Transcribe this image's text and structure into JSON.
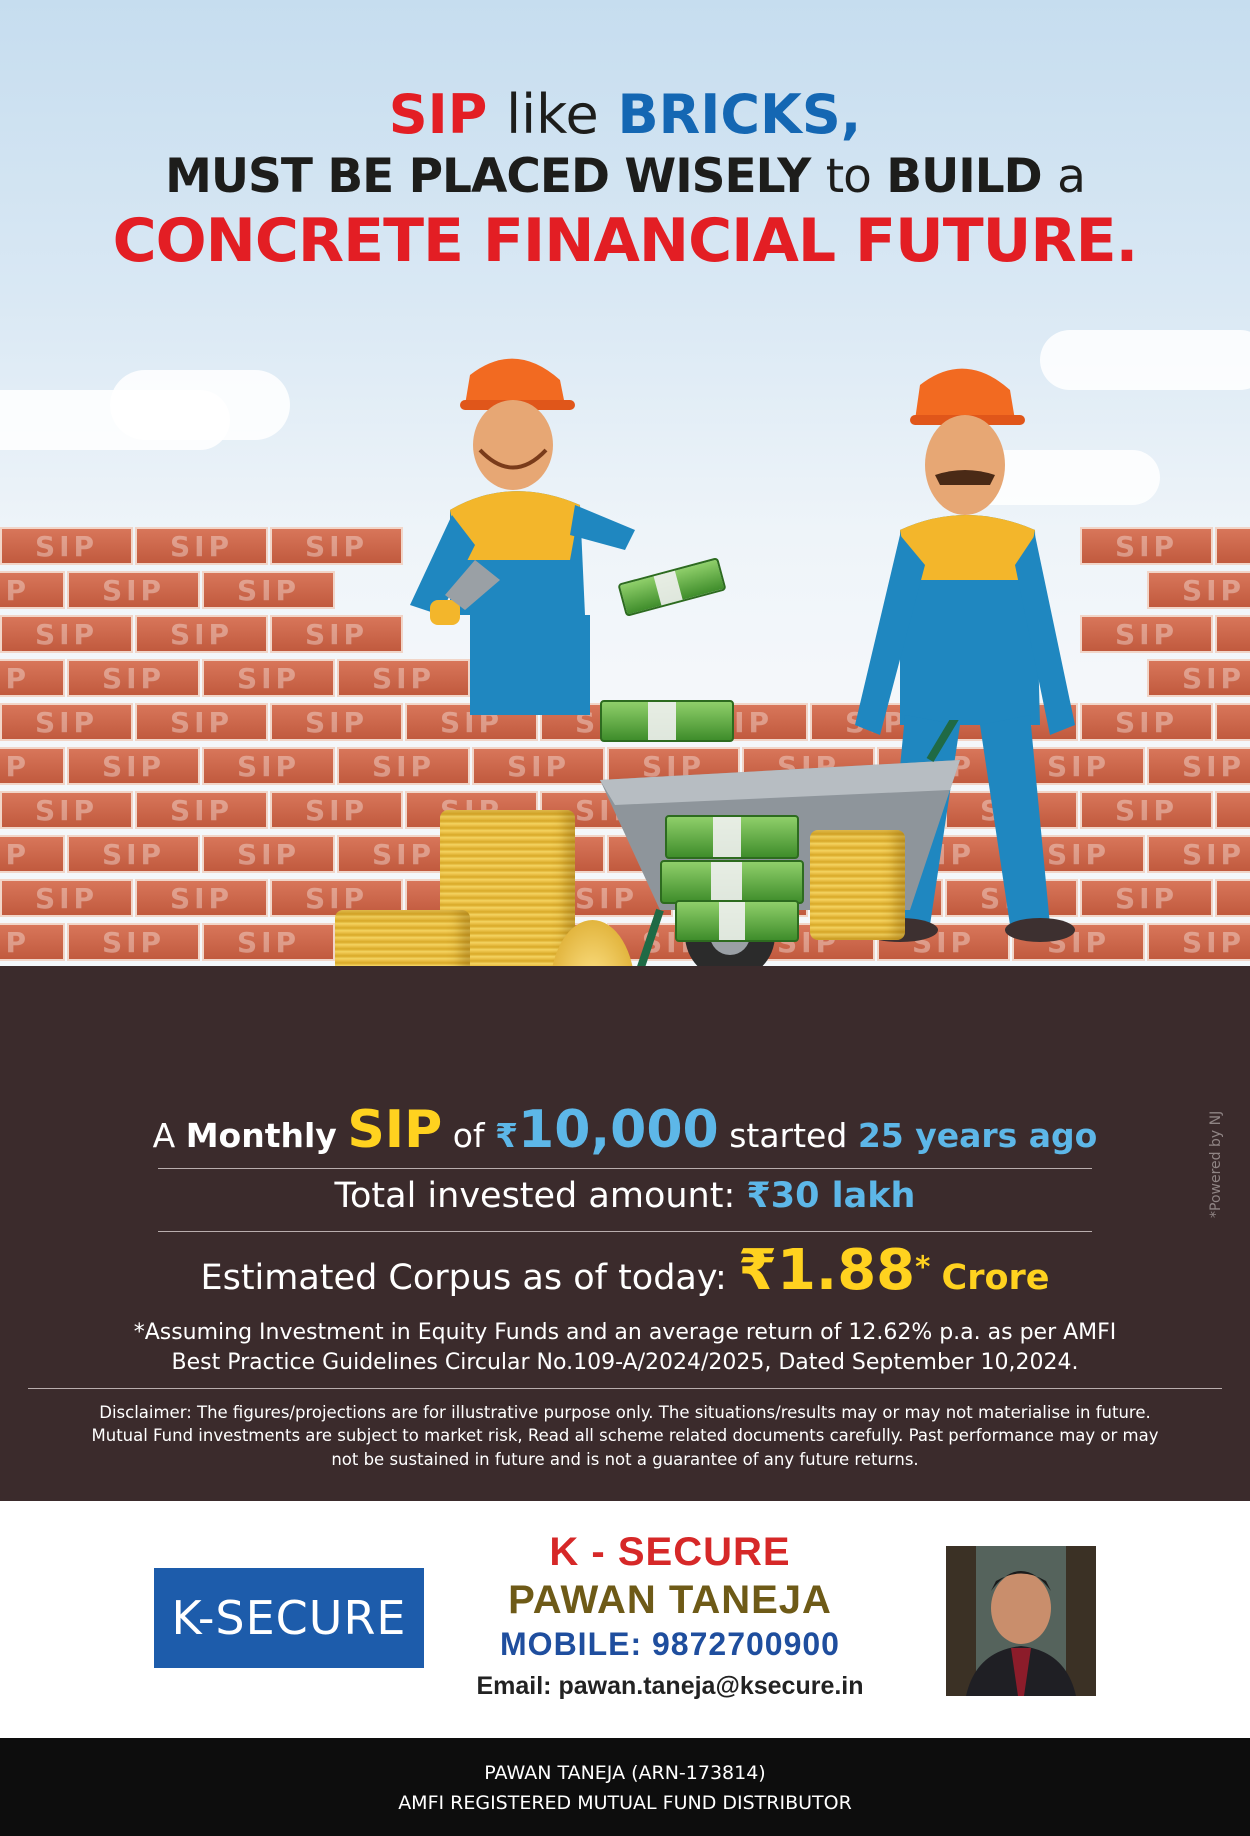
{
  "headline": {
    "line1": {
      "sip": "SIP",
      "like": "like",
      "bricks": "BRICKS,"
    },
    "line2": {
      "must": "MUST BE PLACED WISELY",
      "to": "to",
      "build": "BUILD",
      "a": "a"
    },
    "line3": "CONCRETE FINANCIAL FUTURE."
  },
  "wall": {
    "brick_label": "SIP"
  },
  "stats": {
    "line1": {
      "a": "A",
      "monthly": "Monthly",
      "sip": "SIP",
      "of": "of",
      "rupee": "₹",
      "amount": "10,000",
      "started": "started",
      "years": "25 years ago"
    },
    "line2": {
      "label": "Total invested amount:",
      "value": "₹30 lakh"
    },
    "line3": {
      "label": "Estimated Corpus as of today:",
      "rupee": "₹",
      "value": "1.88",
      "star": "*",
      "unit": "Crore"
    },
    "footnote_1": "*Assuming Investment in Equity Funds and an average return of 12.62% p.a. as per AMFI",
    "footnote_2": "Best Practice  Guidelines Circular No.109-A/2024/2025, Dated September 10,2024.",
    "disclaimer_1": "Disclaimer: The figures/projections are for illustrative purpose only. The situations/results may or may not materialise in future.",
    "disclaimer_2": "Mutual Fund investments are subject to market risk, Read all scheme related documents carefully. Past performance may or may",
    "disclaimer_3": "not be sustained in future and is not a guarantee of any future returns.",
    "powered": "*Powered by NJ"
  },
  "contact": {
    "logo": "K-SECURE",
    "company": "K - SECURE",
    "name": "PAWAN TANEJA",
    "mobile": "MOBILE: 9872700900",
    "email": "Email: pawan.taneja@ksecure.in"
  },
  "footer": {
    "line1": "PAWAN TANEJA (ARN-173814)",
    "line2": "AMFI REGISTERED MUTUAL FUND DISTRIBUTOR"
  },
  "colors": {
    "red": "#e31e24",
    "blue": "#1467b3",
    "yellow": "#ffd21f",
    "panel": "#3b2b2c",
    "logo_blue": "#1d5cab"
  }
}
